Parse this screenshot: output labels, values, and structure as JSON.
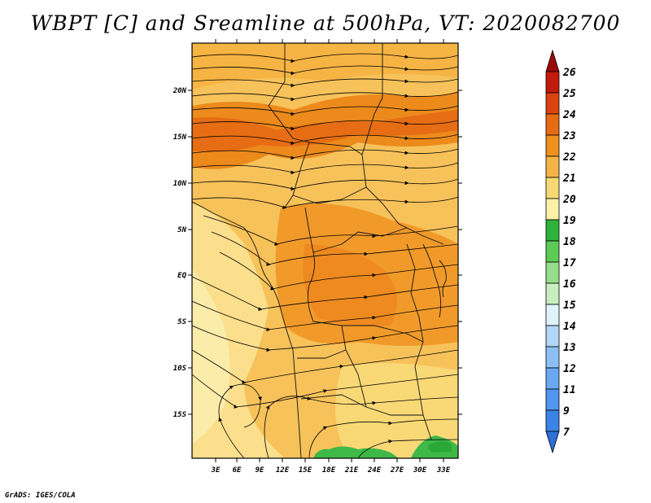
{
  "title": "WBPT [C] and Sreamline at 500hPa, VT: 2020082700",
  "credit": "GrADS: IGES/COLA",
  "map": {
    "lat_ticks": [
      "20N",
      "15N",
      "10N",
      "5N",
      "EQ",
      "5S",
      "10S",
      "15S"
    ],
    "lon_ticks": [
      "3E",
      "6E",
      "9E",
      "12E",
      "15E",
      "18E",
      "21E",
      "24E",
      "27E",
      "30E",
      "33E"
    ]
  },
  "colorbar": {
    "levels": [
      "7",
      "9",
      "11",
      "12",
      "13",
      "14",
      "15",
      "16",
      "17",
      "18",
      "19",
      "20",
      "21",
      "22",
      "23",
      "24",
      "25",
      "26"
    ],
    "colors": [
      "#2f6fd6",
      "#3a84e8",
      "#4f97f0",
      "#6aa9f2",
      "#8cc0f5",
      "#b1d6f8",
      "#dff3fb",
      "#c8eec0",
      "#96de8a",
      "#5ccc57",
      "#2fb33a",
      "#fbf2a8",
      "#f8d874",
      "#f4b445",
      "#ef8f1e",
      "#e86a12",
      "#dc4212",
      "#c21a0c",
      "#9c0a08"
    ]
  }
}
